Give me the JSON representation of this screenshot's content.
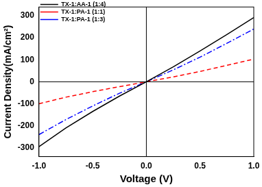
{
  "chart_data": {
    "type": "line",
    "x_label": "Voltage (V)",
    "y_label": "Current Density(mA/cm²)",
    "x": [
      -1,
      -0.75,
      -0.5,
      -0.25,
      0,
      0.25,
      0.5,
      0.75,
      1
    ],
    "series": [
      {
        "name": "TX-1:AA-1 (1:4)",
        "color": "#000000",
        "line_style": "solid",
        "marker": "none",
        "values": [
          -295,
          -210,
          -135,
          -65,
          0,
          68,
          140,
          215,
          292
        ]
      },
      {
        "name": "TX-1:PA-1 (1:1)",
        "color": "#ff0000",
        "line_style": "dashed",
        "marker": "none",
        "values": [
          -100,
          -70,
          -45,
          -22,
          0,
          22,
          47,
          75,
          103
        ]
      },
      {
        "name": "TX-1:PA-1 (1:3)",
        "color": "#0000ff",
        "line_style": "dashdot",
        "marker": "none",
        "values": [
          -240,
          -172,
          -110,
          -52,
          0,
          54,
          112,
          175,
          240
        ]
      }
    ],
    "xlim": [
      -1,
      1
    ],
    "xticks": [
      {
        "value": -1,
        "label": "-1.0"
      },
      -0.5,
      {
        "value": 0,
        "label": "0.0"
      },
      0.5,
      {
        "value": 1,
        "label": "1.0"
      }
    ],
    "ylim": [
      -340,
      340
    ],
    "yticks": [
      -300,
      -200,
      -100,
      0,
      100,
      200,
      300
    ],
    "legend": "upper left",
    "grid": false
  }
}
